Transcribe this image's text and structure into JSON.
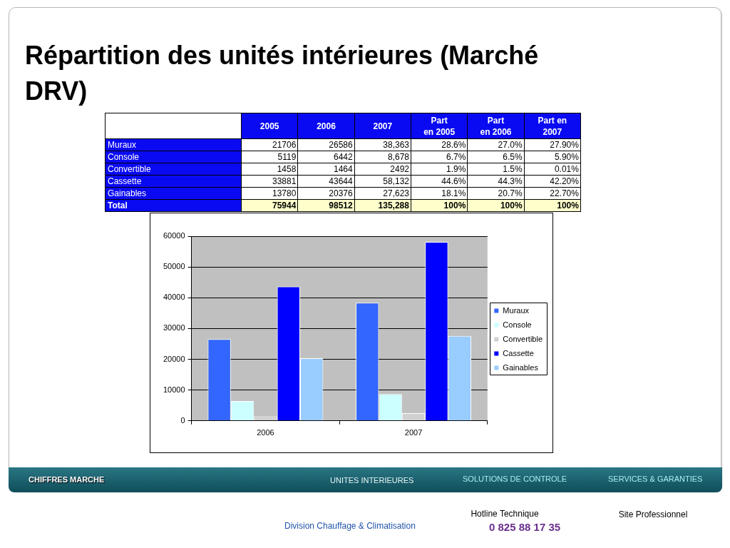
{
  "chart_data": [
    {
      "type": "other",
      "title": "Répartition des unités intérieures (Marché DRV)",
      "categories": [
        "2005",
        "2006",
        "2007",
        "Part\nen 2005",
        "Part\nen 2006",
        "Part en\n2007"
      ],
      "y_categories": [
        "Muraux",
        "Console",
        "Convertible",
        "Cassette",
        "Gainables",
        "Total"
      ],
      "cell_labels": [
        [
          "21706",
          "26586",
          "38,363",
          "28.6%",
          "27.0%",
          "27.90%"
        ],
        [
          "5119",
          "6442",
          "8,678",
          "6.7%",
          "6.5%",
          "5.90%"
        ],
        [
          "1458",
          "1464",
          "2492",
          "1.9%",
          "1.5%",
          "0.01%"
        ],
        [
          "33881",
          "43644",
          "58,132",
          "44.6%",
          "44.3%",
          "42.20%"
        ],
        [
          "13780",
          "20376",
          "27,623",
          "18.1%",
          "20.7%",
          "22.70%"
        ],
        [
          "75944",
          "98512",
          "135,288",
          "100%",
          "100%",
          "100%"
        ]
      ]
    },
    {
      "type": "bar",
      "categories": [
        "2006",
        "2007"
      ],
      "series": [
        {
          "name": "Muraux",
          "color": "#3366ff",
          "values": [
            26586,
            38363
          ]
        },
        {
          "name": "Console",
          "color": "#ccffff",
          "values": [
            6442,
            8678
          ]
        },
        {
          "name": "Convertible",
          "color": "#d0d0d0",
          "values": [
            1464,
            2492
          ]
        },
        {
          "name": "Cassette",
          "color": "#0000ff",
          "values": [
            43644,
            58132
          ]
        },
        {
          "name": "Gainables",
          "color": "#99ccff",
          "values": [
            20376,
            27623
          ]
        }
      ],
      "ylim": [
        0,
        60000
      ],
      "yticks": [
        0,
        10000,
        20000,
        30000,
        40000,
        50000,
        60000
      ],
      "grid": "y",
      "legend": "right",
      "annotations": [
        "CHIFFRES MARCHE",
        "UNITES INTERIEURES",
        "SOLUTIONS DE CONTROLE",
        "SERVICES & GARANTIES",
        "Division Chauffage & Climatisation",
        "Hotline Technique",
        "0 825 88 17 35",
        "Site Professionnel"
      ]
    }
  ]
}
